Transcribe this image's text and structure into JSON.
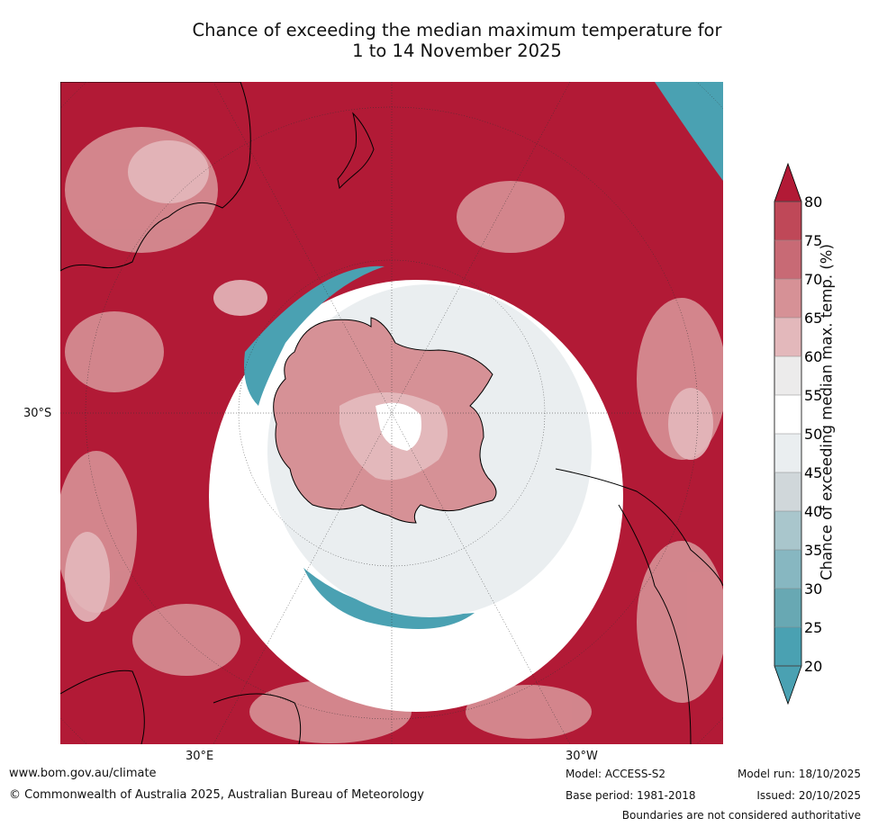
{
  "title_line1": "Chance of exceeding the median maximum temperature for",
  "title_line2": "1 to 14 November 2025",
  "axis_labels": {
    "lat": "30°S",
    "lon_left": "30°E",
    "lon_right": "30°W"
  },
  "colorbar": {
    "label": "Chance of exceeding median max. temp. (%)",
    "ticks": [
      "80",
      "75",
      "70",
      "65",
      "60",
      "55",
      "50",
      "45",
      "40",
      "35",
      "30",
      "25",
      "20"
    ],
    "colors": [
      "#b21a36",
      "#bf4858",
      "#c86a75",
      "#d69196",
      "#e3b8bb",
      "#ecebeb",
      "#ffffff",
      "#eaeef0",
      "#d0d7da",
      "#a9c6cc",
      "#87b7c1",
      "#68a8b3",
      "#4aa1b2"
    ],
    "overflow_high_color": "#b21a36",
    "overflow_low_color": "#4aa1b2"
  },
  "footer": {
    "website": "www.bom.gov.au/climate",
    "copyright": "© Commonwealth of Australia 2025, Australian Bureau of Meteorology",
    "model": "Model: ACCESS-S2",
    "base_period": "Base period: 1981-2018",
    "model_run": "Model run: 18/10/2025",
    "issued": "Issued: 20/10/2025",
    "disclaimer": "Boundaries are not considered authoritative"
  }
}
